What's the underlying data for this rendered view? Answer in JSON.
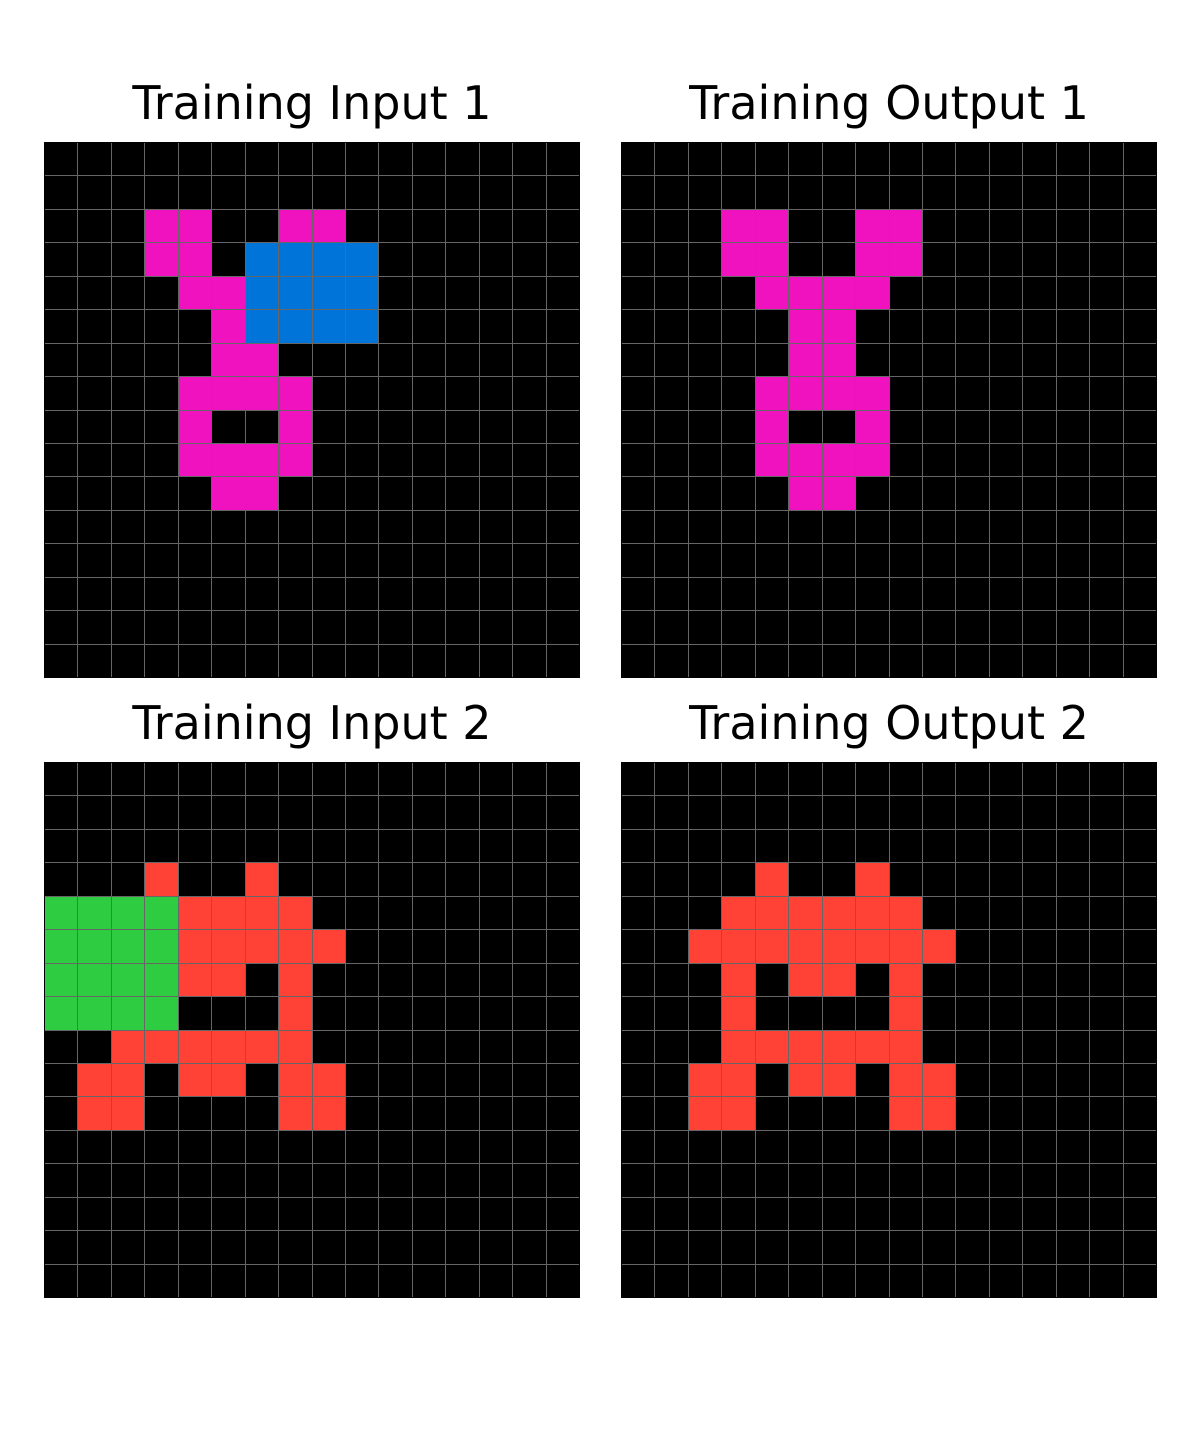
{
  "palette": {
    "0": "#000000",
    "1": "#0074D9",
    "2": "#FF4136",
    "3": "#2ECC40",
    "6": "#F012BE"
  },
  "panels": [
    {
      "title": "Training Input 1",
      "grid": [
        "0000000000000000",
        "0000000000000000",
        "0006600660000000",
        "0006601111000000",
        "0000661111000000",
        "0000061111000000",
        "0000066000000000",
        "0000666600000000",
        "0000600600000000",
        "0000666600000000",
        "0000066000000000",
        "0000000000000000",
        "0000000000000000",
        "0000000000000000",
        "0000000000000000",
        "0000000000000000"
      ]
    },
    {
      "title": "Training Output 1",
      "grid": [
        "0000000000000000",
        "0000000000000000",
        "0006600660000000",
        "0006600660000000",
        "0000666600000000",
        "0000066000000000",
        "0000066000000000",
        "0000666600000000",
        "0000600600000000",
        "0000666600000000",
        "0000066000000000",
        "0000000000000000",
        "0000000000000000",
        "0000000000000000",
        "0000000000000000",
        "0000000000000000"
      ]
    },
    {
      "title": "Training Input 2",
      "grid": [
        "0000000000000000",
        "0000000000000000",
        "0000000000000000",
        "0002002000000000",
        "3333222200000000",
        "3333222220000000",
        "3333220200000000",
        "3333000200000000",
        "0022222200000000",
        "0220220220000000",
        "0220000220000000",
        "0000000000000000",
        "0000000000000000",
        "0000000000000000",
        "0000000000000000",
        "0000000000000000"
      ]
    },
    {
      "title": "Training Output 2",
      "grid": [
        "0000000000000000",
        "0000000000000000",
        "0000000000000000",
        "0000200200000000",
        "0002222220000000",
        "0022222222000000",
        "0002022020000000",
        "0002000020000000",
        "0002222220000000",
        "0022022022000000",
        "0022000022000000",
        "0000000000000000",
        "0000000000000000",
        "0000000000000000",
        "0000000000000000",
        "0000000000000000"
      ]
    }
  ]
}
